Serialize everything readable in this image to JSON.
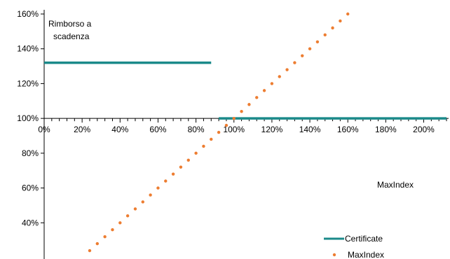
{
  "chart_data": {
    "type": "line",
    "title": "",
    "annotations": {
      "y_axis_title_line1": "Rimborso a",
      "y_axis_title_line2": "scadenza",
      "x_axis_title": "MaxIndex"
    },
    "x_axis": {
      "min": 0,
      "max": 212,
      "ticks": [
        0,
        20,
        40,
        60,
        80,
        100,
        120,
        140,
        160,
        180,
        200
      ],
      "tick_labels": [
        "0%",
        "20%",
        "40%",
        "60%",
        "80%",
        "100%",
        "120%",
        "140%",
        "160%",
        "180%",
        "200%"
      ],
      "minor_step": 4,
      "crosses_y_at": 100
    },
    "y_axis": {
      "min": 20,
      "max": 160,
      "ticks": [
        40,
        60,
        80,
        100,
        120,
        140,
        160
      ],
      "tick_labels": [
        "40%",
        "60%",
        "80%",
        "100%",
        "120%",
        "140%",
        "160%"
      ]
    },
    "series": [
      {
        "name": "Certificate",
        "style": "solid-line",
        "color": "#1b8a8a",
        "segments": [
          [
            [
              0,
              132
            ],
            [
              88,
              132
            ]
          ],
          [
            [
              92,
              100
            ],
            [
              212,
              100
            ]
          ]
        ]
      },
      {
        "name": "MaxIndex",
        "style": "dotted",
        "color": "#ed7d31",
        "x": [
          24,
          28,
          32,
          36,
          40,
          44,
          48,
          52,
          56,
          60,
          64,
          68,
          72,
          76,
          80,
          84,
          88,
          92,
          96,
          100,
          104,
          108,
          112,
          116,
          120,
          124,
          128,
          132,
          136,
          140,
          144,
          148,
          152,
          156,
          160
        ],
        "y": [
          24,
          28,
          32,
          36,
          40,
          44,
          48,
          52,
          56,
          60,
          64,
          68,
          72,
          76,
          80,
          84,
          88,
          92,
          96,
          100,
          104,
          108,
          112,
          116,
          120,
          124,
          128,
          132,
          136,
          140,
          144,
          148,
          152,
          156,
          160
        ]
      }
    ],
    "legend": {
      "position": "bottom-right",
      "entries": [
        "Certificate",
        "MaxIndex"
      ]
    },
    "grid": false
  }
}
